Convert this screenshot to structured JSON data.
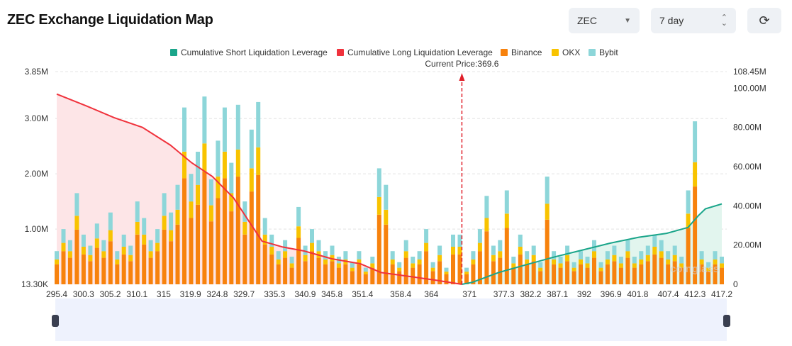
{
  "header": {
    "title": "ZEC Exchange Liquidation Map",
    "coin_select": "ZEC",
    "period_select": "7 day",
    "refresh_icon": "refresh-icon"
  },
  "colors": {
    "binance": "#f7820d",
    "okx": "#f8c300",
    "bybit": "#8dd6d9",
    "long": "#f0323c",
    "short": "#1aa58a",
    "long_fill": "#fde5e7",
    "short_fill": "#e2f5ee",
    "slider": "#eef2fd"
  },
  "chart_data": {
    "type": "bar",
    "legend": [
      "Cumulative Short Liquidation Leverage",
      "Cumulative Long Liquidation Leverage",
      "Binance",
      "OKX",
      "Bybit"
    ],
    "legend_position": "top",
    "current_price_label": "Current Price:369.6",
    "current_price": 369.6,
    "x_ticks": [
      "295.4",
      "300.3",
      "305.2",
      "310.1",
      "315",
      "319.9",
      "324.8",
      "329.7",
      "335.3",
      "340.9",
      "345.8",
      "351.4",
      "358.4",
      "364",
      "371",
      "377.3",
      "382.2",
      "387.1",
      "392",
      "396.9",
      "401.8",
      "407.4",
      "412.3",
      "417.2"
    ],
    "xlim": [
      295.4,
      417.2
    ],
    "y_left_ticks": [
      "13.30K",
      "1.00M",
      "2.00M",
      "3.00M",
      "3.85M"
    ],
    "y_left_values": [
      0,
      1,
      2,
      3,
      3.85
    ],
    "y_right_ticks": [
      "0",
      "20.00M",
      "40.00M",
      "60.00M",
      "80.00M",
      "100.00M",
      "108.45M"
    ],
    "y_right_values": [
      0,
      20,
      40,
      60,
      80,
      100,
      108.45
    ],
    "grid": true,
    "bar_series": [
      {
        "name": "Binance",
        "values": [
          0.36,
          0.6,
          0.48,
          0.99,
          0.54,
          0.42,
          0.66,
          0.48,
          0.78,
          0.36,
          0.54,
          0.42,
          0.9,
          0.72,
          0.48,
          0.6,
          0.99,
          0.78,
          1.08,
          1.92,
          1.2,
          1.44,
          2.04,
          1.14,
          1.56,
          1.92,
          1.32,
          1.95,
          0.9,
          1.68,
          1.98,
          0.72,
          0.54,
          0.36,
          0.48,
          0.3,
          0.84,
          0.42,
          0.6,
          0.48,
          0.36,
          0.42,
          0.3,
          0.36,
          0.24,
          0.36,
          0.18,
          0.3,
          1.26,
          1.08,
          0.36,
          0.24,
          0.48,
          0.3,
          0.36,
          0.6,
          0.24,
          0.42,
          0.18,
          0.54,
          0.54,
          0.18,
          0.36,
          0.6,
          0.96,
          0.42,
          0.48,
          1.02,
          0.3,
          0.54,
          0.36,
          0.42,
          0.24,
          1.17,
          0.36,
          0.3,
          0.42,
          0.24,
          0.36,
          0.3,
          0.48,
          0.24,
          0.36,
          0.42,
          0.3,
          0.48,
          0.3,
          0.36,
          0.42,
          0.54,
          0.48,
          0.36,
          0.42,
          0.3,
          1.02,
          1.77,
          0.36,
          0.24,
          0.36,
          0.3
        ]
      },
      {
        "name": "OKX",
        "values": [
          0.09,
          0.15,
          0.12,
          0.25,
          0.14,
          0.11,
          0.17,
          0.12,
          0.2,
          0.09,
          0.14,
          0.11,
          0.23,
          0.18,
          0.12,
          0.15,
          0.25,
          0.2,
          0.27,
          0.48,
          0.3,
          0.36,
          0.51,
          0.29,
          0.39,
          0.48,
          0.33,
          0.49,
          0.23,
          0.42,
          0.5,
          0.18,
          0.14,
          0.09,
          0.12,
          0.08,
          0.21,
          0.11,
          0.15,
          0.12,
          0.09,
          0.11,
          0.08,
          0.09,
          0.06,
          0.09,
          0.05,
          0.08,
          0.32,
          0.27,
          0.09,
          0.06,
          0.12,
          0.08,
          0.09,
          0.15,
          0.06,
          0.11,
          0.05,
          0.14,
          0.14,
          0.05,
          0.09,
          0.15,
          0.24,
          0.11,
          0.12,
          0.26,
          0.08,
          0.14,
          0.09,
          0.11,
          0.06,
          0.29,
          0.09,
          0.08,
          0.11,
          0.06,
          0.09,
          0.08,
          0.12,
          0.06,
          0.09,
          0.11,
          0.08,
          0.12,
          0.08,
          0.09,
          0.11,
          0.14,
          0.12,
          0.09,
          0.11,
          0.08,
          0.26,
          0.44,
          0.09,
          0.06,
          0.09,
          0.08
        ]
      },
      {
        "name": "Bybit",
        "values": [
          0.15,
          0.25,
          0.2,
          0.41,
          0.22,
          0.17,
          0.27,
          0.2,
          0.32,
          0.15,
          0.22,
          0.17,
          0.37,
          0.3,
          0.2,
          0.25,
          0.41,
          0.32,
          0.45,
          0.8,
          0.5,
          0.6,
          0.85,
          0.47,
          0.65,
          0.8,
          0.55,
          0.81,
          0.37,
          0.7,
          0.82,
          0.3,
          0.22,
          0.15,
          0.2,
          0.12,
          0.35,
          0.17,
          0.25,
          0.2,
          0.15,
          0.17,
          0.12,
          0.15,
          0.1,
          0.15,
          0.07,
          0.12,
          0.52,
          0.45,
          0.15,
          0.1,
          0.2,
          0.12,
          0.15,
          0.25,
          0.1,
          0.17,
          0.07,
          0.22,
          0.22,
          0.07,
          0.15,
          0.25,
          0.4,
          0.17,
          0.2,
          0.42,
          0.12,
          0.22,
          0.15,
          0.17,
          0.1,
          0.49,
          0.15,
          0.12,
          0.17,
          0.1,
          0.15,
          0.12,
          0.2,
          0.1,
          0.15,
          0.17,
          0.12,
          0.2,
          0.12,
          0.15,
          0.17,
          0.22,
          0.2,
          0.15,
          0.17,
          0.12,
          0.42,
          0.74,
          0.15,
          0.1,
          0.15,
          0.12
        ]
      }
    ],
    "long_line": {
      "name": "Cumulative Long Liquidation Leverage",
      "x": [
        295.4,
        300.8,
        305.9,
        311.1,
        316.2,
        320.1,
        323.9,
        327.8,
        330.4,
        333.0,
        336.8,
        340.7,
        345.8,
        351.0,
        354.8,
        360.0,
        365.1,
        369.6
      ],
      "y": [
        97,
        91,
        85,
        80,
        71,
        62,
        55,
        44,
        33,
        22,
        19,
        17,
        13,
        10.5,
        6,
        4,
        2,
        0
      ]
    },
    "short_line": {
      "name": "Cumulative Short Liquidation Leverage",
      "x": [
        369.6,
        371.5,
        376.3,
        381.4,
        386.6,
        391.7,
        396.8,
        402.0,
        407.1,
        411.0,
        412.9,
        414.2,
        417.2
      ],
      "y": [
        0,
        1,
        6,
        10,
        14,
        17.5,
        21,
        24,
        26,
        29,
        35,
        38.5,
        41
      ]
    },
    "watermark": "coinglass"
  }
}
